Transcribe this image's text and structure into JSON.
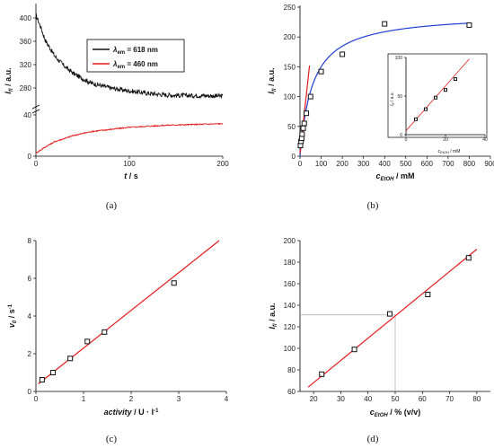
{
  "colors": {
    "black": "#111111",
    "red": "#e41a1c",
    "blue": "#1f3fd6",
    "guide": "#9a9a9a"
  },
  "chart_data": [
    {
      "type": "line",
      "caption": "(a)",
      "xlabel": "t",
      "xunit": " / s",
      "ylabel": "I",
      "ylabel_sub": "fl",
      "yunit": " / a.u.",
      "xlim": [
        0,
        200
      ],
      "ylim_lower": [
        0,
        40
      ],
      "ylim_upper": [
        260,
        400
      ],
      "xticks": [
        0,
        100,
        200
      ],
      "yticks_lower": [
        0,
        40
      ],
      "yticks_upper": [
        280,
        320,
        360,
        400
      ],
      "legend_position": "top-right",
      "series": [
        {
          "name": "λem = 618 nm",
          "name_prefix": "λ",
          "name_sub": "em",
          "name_suffix": " = 618 nm",
          "color": "#111111",
          "model": "decay",
          "x": [
            0,
            5,
            10,
            20,
            30,
            40,
            50,
            60,
            80,
            100,
            120,
            140,
            160,
            180,
            200
          ],
          "y": [
            405,
            385,
            362,
            335,
            318,
            305,
            296,
            288,
            280,
            275,
            271,
            268,
            267,
            267,
            266
          ]
        },
        {
          "name": "λem = 460 nm",
          "name_prefix": "λ",
          "name_sub": "em",
          "name_suffix": " = 460 nm",
          "color": "#e41a1c",
          "model": "rise",
          "x": [
            0,
            10,
            20,
            40,
            60,
            80,
            100,
            120,
            140,
            160,
            180,
            200
          ],
          "y": [
            3,
            9,
            14,
            20,
            24,
            26,
            28,
            29,
            30,
            30.5,
            31,
            31.5
          ]
        }
      ]
    },
    {
      "type": "scatter",
      "caption": "(b)",
      "xlabel": "c",
      "xlabel_sub": "EtOH",
      "xunit": " / mM",
      "ylabel": "I",
      "ylabel_sub": "fl",
      "yunit": " / a.u.",
      "xlim": [
        0,
        900
      ],
      "ylim": [
        0,
        250
      ],
      "xticks": [
        0,
        100,
        200,
        300,
        400,
        500,
        600,
        700,
        800,
        900
      ],
      "yticks": [
        0,
        50,
        100,
        150,
        200,
        250
      ],
      "points": {
        "x": [
          2,
          5,
          8,
          10,
          15,
          20,
          30,
          50,
          100,
          200,
          400,
          800
        ],
        "y": [
          18,
          25,
          30,
          37,
          47,
          55,
          72,
          100,
          142,
          171,
          222,
          220
        ]
      },
      "fit": {
        "model": "michaelis-menten",
        "Imax": 240,
        "Km": 60,
        "color": "#1f3fd6"
      },
      "linear_fit": {
        "x": [
          0,
          45
        ],
        "y": [
          5,
          152
        ],
        "color": "#e41a1c"
      },
      "inset": {
        "xlabel": "c",
        "xlabel_sub": "EtOH",
        "xunit": " / mM",
        "ylabel": "I",
        "ylabel_sub": "fl",
        "yunit": " / a.u.",
        "xlim": [
          0,
          40
        ],
        "ylim": [
          0,
          100
        ],
        "xticks": [
          0,
          20,
          40
        ],
        "yticks": [
          0,
          50,
          100
        ],
        "points": {
          "x": [
            5,
            10,
            15,
            20,
            25
          ],
          "y": [
            20,
            33,
            48,
            58,
            72
          ]
        },
        "fit": {
          "x": [
            0,
            32
          ],
          "y": [
            5,
            98
          ]
        }
      }
    },
    {
      "type": "scatter",
      "caption": "(c)",
      "xlabel": "activity",
      "xunit": " / U · l",
      "xunit_sup": "-1",
      "ylabel": "v",
      "ylabel_sub": "0",
      "yunit": " / s",
      "yunit_sup": "-1",
      "xlim": [
        0,
        4
      ],
      "ylim": [
        0,
        8
      ],
      "xticks": [
        0,
        1,
        2,
        3,
        4
      ],
      "yticks": [
        0,
        2,
        4,
        6,
        8
      ],
      "points": {
        "x": [
          0.13,
          0.36,
          0.72,
          1.08,
          1.44,
          2.9
        ],
        "y": [
          0.62,
          1.0,
          1.75,
          2.65,
          3.15,
          5.75
        ]
      },
      "fit": {
        "x": [
          0.05,
          3.85
        ],
        "y": [
          0.4,
          8.0
        ],
        "color": "#e41a1c"
      }
    },
    {
      "type": "scatter",
      "caption": "(d)",
      "xlabel": "c",
      "xlabel_sub": "EtOH",
      "xunit": " / % (v/v)",
      "ylabel": "I",
      "ylabel_sub": "fl",
      "yunit": " / a.u.",
      "xlim": [
        15,
        85
      ],
      "ylim": [
        60,
        200
      ],
      "xticks": [
        20,
        30,
        40,
        50,
        60,
        70,
        80
      ],
      "yticks": [
        60,
        80,
        100,
        120,
        140,
        160,
        180,
        200
      ],
      "points": {
        "x": [
          23,
          35,
          48,
          62,
          77
        ],
        "y": [
          76,
          99,
          132,
          150,
          184
        ]
      },
      "fit": {
        "x": [
          18,
          80
        ],
        "y": [
          64,
          192
        ],
        "color": "#e41a1c"
      },
      "guide": {
        "x": 50,
        "y": 131
      }
    }
  ]
}
